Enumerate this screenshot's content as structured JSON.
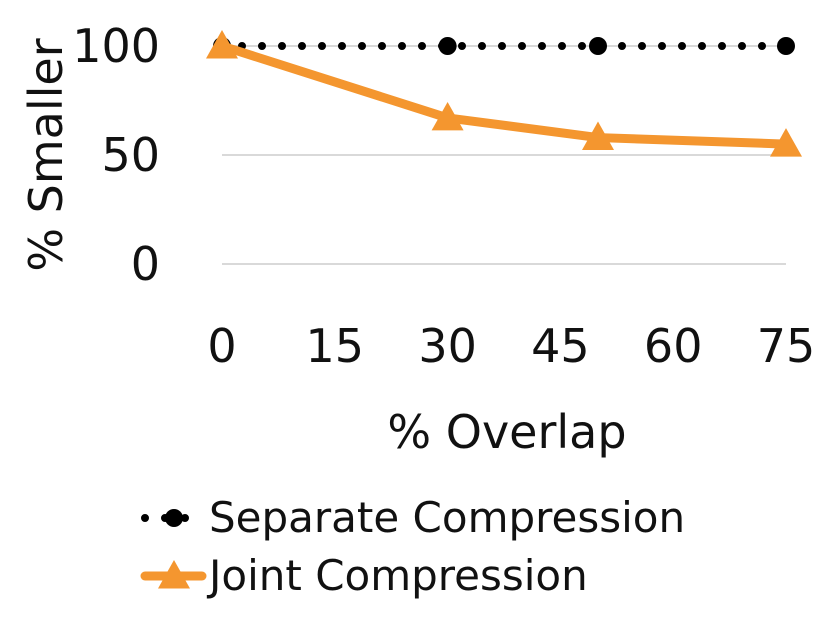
{
  "chart_data": {
    "type": "line",
    "x": [
      0,
      30,
      50,
      75
    ],
    "series": [
      {
        "name": "Separate Compression",
        "values": [
          100,
          100,
          100,
          100
        ],
        "color": "#000000",
        "style": "dotted",
        "marker": "circle"
      },
      {
        "name": "Joint Compression",
        "values": [
          100,
          67,
          58,
          55
        ],
        "color": "#F4962F",
        "style": "solid",
        "marker": "triangle"
      }
    ],
    "xticks": [
      "0",
      "15",
      "30",
      "45",
      "60",
      "75"
    ],
    "yticks": [
      "0",
      "50",
      "100"
    ],
    "xlabel": "% Overlap",
    "ylabel": "% Smaller",
    "xlim": [
      0,
      75
    ],
    "ylim": [
      0,
      100
    ],
    "grid": "horizontal",
    "legend_position": "bottom"
  }
}
